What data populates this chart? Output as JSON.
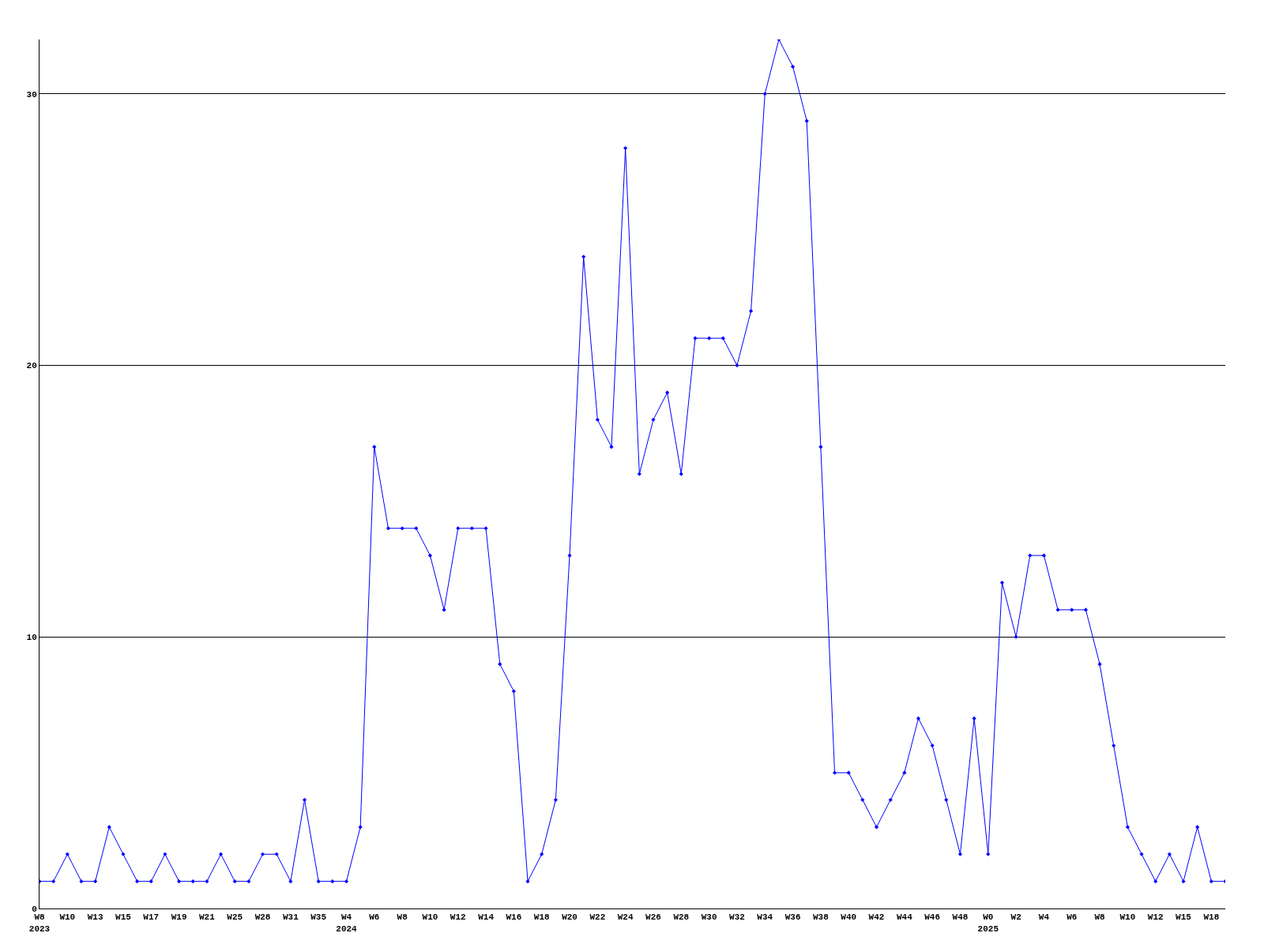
{
  "chart_data": {
    "type": "line",
    "categories": [
      "W8\n2023",
      null,
      "W10",
      null,
      "W13",
      null,
      "W15",
      null,
      "W17",
      null,
      "W19",
      null,
      "W21",
      null,
      "W25",
      null,
      "W28",
      null,
      "W31",
      null,
      "W35",
      null,
      "W4\n2024",
      null,
      "W6",
      null,
      "W8",
      null,
      "W10",
      null,
      "W12",
      null,
      "W14",
      null,
      "W16",
      null,
      "W18",
      null,
      "W20",
      null,
      "W22",
      null,
      "W24",
      null,
      "W26",
      null,
      "W28",
      null,
      "W30",
      null,
      "W32",
      null,
      "W34",
      null,
      "W36",
      null,
      "W38",
      null,
      "W40",
      null,
      "W42",
      null,
      "W44",
      null,
      "W46",
      null,
      "W48",
      null,
      "W0\n2025",
      null,
      "W2",
      null,
      "W4",
      null,
      "W6",
      null,
      "W8",
      null,
      "W10",
      null,
      "W12",
      null,
      "W15",
      null,
      "W18",
      null
    ],
    "series": [
      {
        "color": "#0000ff",
        "values": [
          1,
          1,
          2,
          1,
          1,
          3,
          2,
          1,
          1,
          2,
          1,
          1,
          1,
          2,
          1,
          1,
          2,
          2,
          1,
          4,
          1,
          1,
          1,
          3,
          17,
          14,
          14,
          14,
          13,
          11,
          14,
          14,
          14,
          9,
          8,
          1,
          2,
          4,
          13,
          24,
          18,
          17,
          28,
          16,
          18,
          19,
          16,
          21,
          21,
          21,
          20,
          22,
          30,
          32,
          31,
          29,
          17,
          5,
          5,
          4,
          3,
          4,
          5,
          7,
          6,
          4,
          2,
          7,
          2,
          12,
          10,
          13,
          13,
          11,
          11,
          11,
          9,
          6,
          3,
          2,
          1,
          2,
          1,
          3,
          1,
          1
        ]
      }
    ],
    "ylim": [
      0,
      32
    ],
    "yticks": [
      0,
      10,
      20,
      30
    ],
    "grid": "y",
    "marker": "diamond",
    "line_style": "solid",
    "legend": false
  }
}
